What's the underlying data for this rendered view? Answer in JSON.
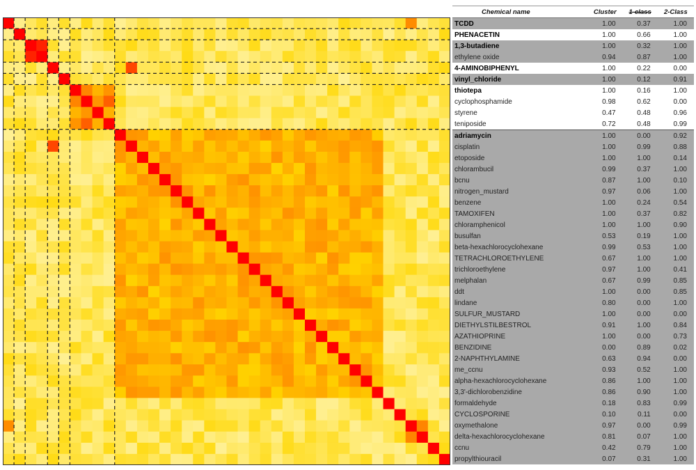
{
  "table": {
    "headers": [
      "Chemical name",
      "Cluster",
      "1-class",
      "2-Class"
    ],
    "rows": [
      {
        "name": "TCDD",
        "cluster": "1.00",
        "one": "0.37",
        "two": "1.00",
        "bold": true,
        "bg": "gray"
      },
      {
        "name": "PHENACETIN",
        "cluster": "1.00",
        "one": "0.66",
        "two": "1.00",
        "bold": true,
        "bg": "white"
      },
      {
        "name": "1,3-butadiene",
        "cluster": "1.00",
        "one": "0.32",
        "two": "1.00",
        "bold": true,
        "bg": "gray"
      },
      {
        "name": "ethylene oxide",
        "cluster": "0.94",
        "one": "0.87",
        "two": "1.00",
        "bold": false,
        "bg": "gray"
      },
      {
        "name": "4-AMINOBIPHENYL",
        "cluster": "1.00",
        "one": "0.22",
        "two": "0.00",
        "bold": true,
        "bg": "white"
      },
      {
        "name": "vinyl_chloride",
        "cluster": "1.00",
        "one": "0.12",
        "two": "0.91",
        "bold": true,
        "bg": "gray"
      },
      {
        "name": "thiotepa",
        "cluster": "1.00",
        "one": "0.16",
        "two": "1.00",
        "bold": true,
        "bg": "white"
      },
      {
        "name": "cyclophosphamide",
        "cluster": "0.98",
        "one": "0.62",
        "two": "0.00",
        "bold": false,
        "bg": "white"
      },
      {
        "name": "styrene",
        "cluster": "0.47",
        "one": "0.48",
        "two": "0.96",
        "bold": false,
        "bg": "white"
      },
      {
        "name": "teniposide",
        "cluster": "0.72",
        "one": "0.48",
        "two": "0.99",
        "bold": false,
        "bg": "white"
      },
      {
        "name": "adriamycin",
        "cluster": "1.00",
        "one": "0.00",
        "two": "0.92",
        "bold": true,
        "bg": "gray"
      },
      {
        "name": "cisplatin",
        "cluster": "1.00",
        "one": "0.99",
        "two": "0.88",
        "bold": false,
        "bg": "gray"
      },
      {
        "name": "etoposide",
        "cluster": "1.00",
        "one": "1.00",
        "two": "0.14",
        "bold": false,
        "bg": "gray"
      },
      {
        "name": "chlorambucil",
        "cluster": "0.99",
        "one": "0.37",
        "two": "1.00",
        "bold": false,
        "bg": "gray"
      },
      {
        "name": "bcnu",
        "cluster": "0.87",
        "one": "1.00",
        "two": "0.10",
        "bold": false,
        "bg": "gray"
      },
      {
        "name": "nitrogen_mustard",
        "cluster": "0.97",
        "one": "0.06",
        "two": "1.00",
        "bold": false,
        "bg": "gray"
      },
      {
        "name": "benzene",
        "cluster": "1.00",
        "one": "0.24",
        "two": "0.54",
        "bold": false,
        "bg": "gray"
      },
      {
        "name": "TAMOXIFEN",
        "cluster": "1.00",
        "one": "0.37",
        "two": "0.82",
        "bold": false,
        "bg": "gray"
      },
      {
        "name": "chloramphenicol",
        "cluster": "1.00",
        "one": "1.00",
        "two": "0.90",
        "bold": false,
        "bg": "gray"
      },
      {
        "name": "busulfan",
        "cluster": "0.53",
        "one": "0.19",
        "two": "1.00",
        "bold": false,
        "bg": "gray"
      },
      {
        "name": "beta-hexachlorocyclohexane",
        "cluster": "0.99",
        "one": "0.53",
        "two": "1.00",
        "bold": false,
        "bg": "gray"
      },
      {
        "name": "TETRACHLOROETHYLENE",
        "cluster": "0.67",
        "one": "1.00",
        "two": "1.00",
        "bold": false,
        "bg": "gray"
      },
      {
        "name": "trichloroethylene",
        "cluster": "0.97",
        "one": "1.00",
        "two": "0.41",
        "bold": false,
        "bg": "gray"
      },
      {
        "name": "melphalan",
        "cluster": "0.67",
        "one": "0.99",
        "two": "0.85",
        "bold": false,
        "bg": "gray"
      },
      {
        "name": "ddt",
        "cluster": "1.00",
        "one": "0.00",
        "two": "0.85",
        "bold": false,
        "bg": "gray"
      },
      {
        "name": "lindane",
        "cluster": "0.80",
        "one": "0.00",
        "two": "1.00",
        "bold": false,
        "bg": "gray"
      },
      {
        "name": "SULFUR_MUSTARD",
        "cluster": "1.00",
        "one": "0.00",
        "two": "0.00",
        "bold": false,
        "bg": "gray"
      },
      {
        "name": "DIETHYLSTILBESTROL",
        "cluster": "0.91",
        "one": "1.00",
        "two": "0.84",
        "bold": false,
        "bg": "gray"
      },
      {
        "name": "AZATHIOPRINE",
        "cluster": "1.00",
        "one": "0.00",
        "two": "0.73",
        "bold": false,
        "bg": "gray"
      },
      {
        "name": "BENZIDINE",
        "cluster": "0.00",
        "one": "0.89",
        "two": "0.02",
        "bold": false,
        "bg": "gray"
      },
      {
        "name": "2-NAPHTHYLAMINE",
        "cluster": "0.63",
        "one": "0.94",
        "two": "0.00",
        "bold": false,
        "bg": "gray"
      },
      {
        "name": "me_ccnu",
        "cluster": "0.93",
        "one": "0.52",
        "two": "1.00",
        "bold": false,
        "bg": "gray"
      },
      {
        "name": "alpha-hexachlorocyclohexane",
        "cluster": "0.86",
        "one": "1.00",
        "two": "1.00",
        "bold": false,
        "bg": "gray"
      },
      {
        "name": "3,3'-dichlorobenzidine",
        "cluster": "0.86",
        "one": "0.90",
        "two": "1.00",
        "bold": false,
        "bg": "gray"
      },
      {
        "name": "formaldehyde",
        "cluster": "0.18",
        "one": "0.83",
        "two": "0.99",
        "bold": false,
        "bg": "gray"
      },
      {
        "name": "CYCLOSPORINE",
        "cluster": "0.10",
        "one": "0.11",
        "two": "0.00",
        "bold": false,
        "bg": "gray"
      },
      {
        "name": "oxymethalone",
        "cluster": "0.97",
        "one": "0.00",
        "two": "0.99",
        "bold": false,
        "bg": "gray"
      },
      {
        "name": "delta-hexachlorocyclohexane",
        "cluster": "0.81",
        "one": "0.07",
        "two": "1.00",
        "bold": false,
        "bg": "gray"
      },
      {
        "name": "ccnu",
        "cluster": "0.42",
        "one": "0.79",
        "two": "1.00",
        "bold": false,
        "bg": "gray"
      },
      {
        "name": "propylthiouracil",
        "cluster": "0.07",
        "one": "0.31",
        "two": "1.00",
        "bold": false,
        "bg": "gray"
      }
    ]
  },
  "chart_data": {
    "type": "heatmap",
    "n": 40,
    "colors": {
      "low": "#fffde0",
      "mid": "#ffd700",
      "high": "#ff8c00",
      "max": "#ff0000"
    },
    "diagonal_value": 1.0,
    "blocks": [
      [
        0,
        1
      ],
      [
        2,
        4
      ],
      [
        4,
        5
      ],
      [
        5,
        6
      ],
      [
        6,
        10
      ],
      [
        10,
        34
      ],
      [
        36,
        38
      ]
    ],
    "block_values": [
      0.55,
      0.72,
      0.85,
      0.7,
      0.72,
      0.62,
      0.95
    ],
    "background_value": 0.28,
    "highlights": [
      [
        0,
        36,
        0.8
      ],
      [
        36,
        0,
        0.8
      ],
      [
        4,
        11,
        0.9
      ],
      [
        11,
        4,
        0.9
      ],
      [
        2,
        3,
        0.95
      ],
      [
        3,
        2,
        0.95
      ],
      [
        2,
        2,
        1
      ],
      [
        3,
        3,
        1
      ]
    ]
  }
}
